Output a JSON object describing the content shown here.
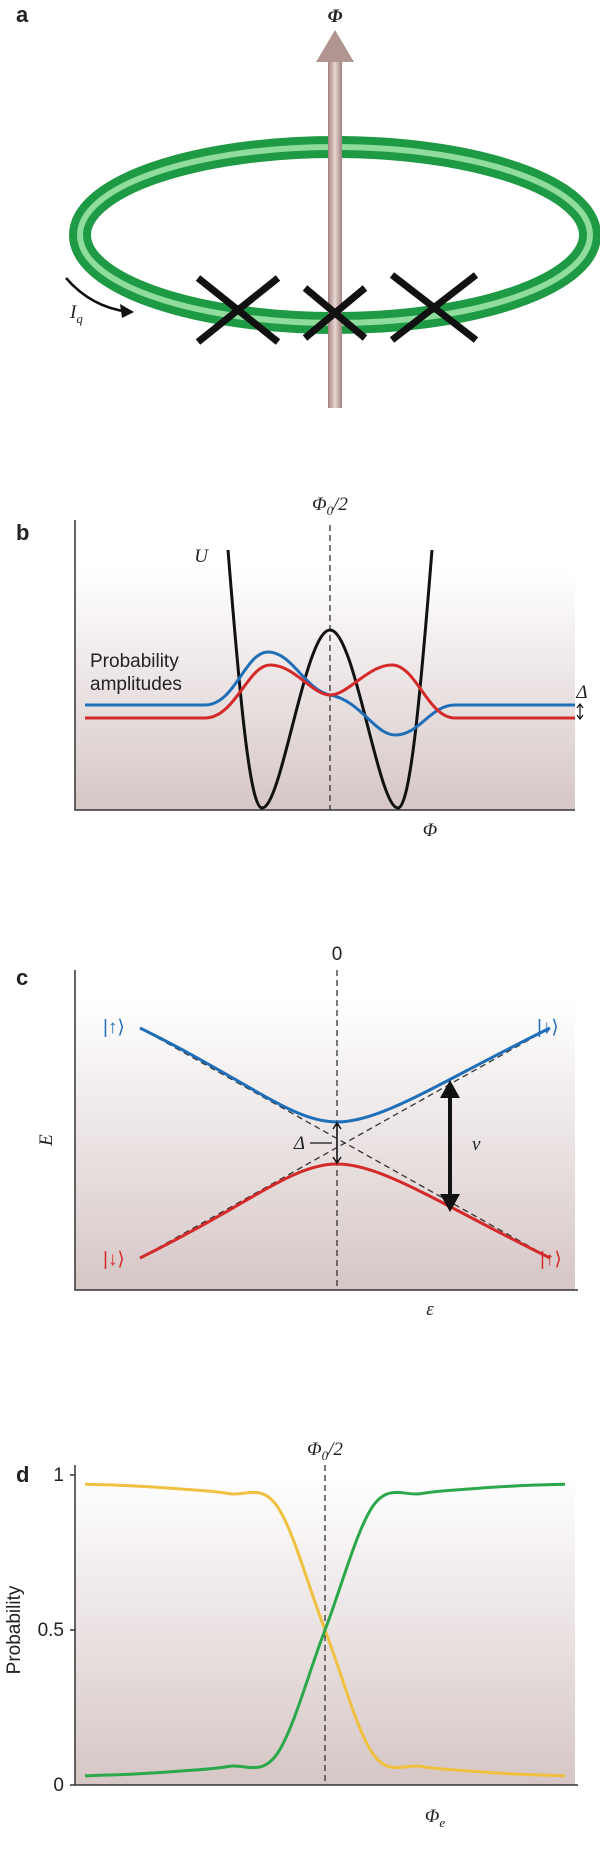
{
  "panel_a": {
    "label": "a",
    "flux": "Φ",
    "current": "I",
    "current_sub": "q"
  },
  "panel_b": {
    "label": "b",
    "top": {
      "main": "Φ",
      "sub": "0",
      "rest": "/2"
    },
    "potential": "U",
    "amplitudes": [
      "Probability",
      "amplitudes"
    ],
    "gap": "Δ",
    "x_label": "Φ"
  },
  "panel_c": {
    "label": "c",
    "zero": "0",
    "kets": [
      "|↑⟩",
      "|↓⟩",
      "|↓⟩",
      "|↑⟩"
    ],
    "y_label": "E",
    "gap": "Δ",
    "freq": "ν",
    "x_label": "ε"
  },
  "panel_d": {
    "label": "d",
    "top": {
      "main": "Φ",
      "sub": "0",
      "rest": "/2"
    }
  },
  "chart_data": {
    "type": "line",
    "y_label": "Probability",
    "x_label": {
      "main": "Φ",
      "sub": "e"
    },
    "ylim": [
      0,
      1
    ],
    "yticks": [
      0,
      0.5,
      1
    ],
    "series": [
      {
        "color": "#f0c040",
        "values": [
          0.97,
          0.965,
          0.955,
          0.94,
          0.9,
          0.5,
          0.1,
          0.06,
          0.045,
          0.035,
          0.03
        ]
      },
      {
        "color": "#2aa84a",
        "values": [
          0.03,
          0.035,
          0.045,
          0.06,
          0.1,
          0.5,
          0.9,
          0.94,
          0.955,
          0.965,
          0.97
        ]
      }
    ]
  }
}
